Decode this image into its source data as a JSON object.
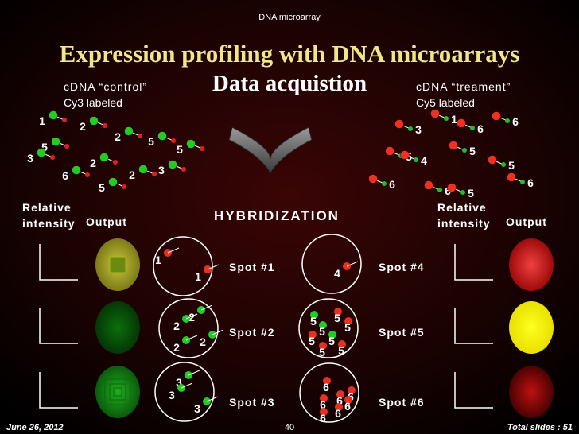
{
  "header": "DNA microarray",
  "title": "Expression profiling with DNA microarrays",
  "subtitle": "Data acquistion",
  "control": {
    "name": "cDNA “control”",
    "label": "Cy3 labeled",
    "spots": [
      1,
      2,
      2,
      5,
      5,
      5,
      3,
      2,
      3,
      6,
      2,
      5
    ]
  },
  "treatment": {
    "name": "cDNA “treament”",
    "label": "Cy5 labeled",
    "spots": [
      1,
      6,
      6,
      3,
      5,
      5,
      4,
      5,
      6,
      6,
      6,
      5
    ]
  },
  "left_panel": {
    "intensity": [
      "Relative",
      "intensity"
    ],
    "output": "Output"
  },
  "right_panel": {
    "intensity": [
      "Relative",
      "intensity"
    ],
    "output": "Output"
  },
  "hybridization": "HYBRIDIZATION",
  "spots": [
    {
      "label": "Spot #1",
      "numbers": [
        1,
        1
      ]
    },
    {
      "label": "Spot #2",
      "numbers": [
        2,
        2,
        2,
        2
      ]
    },
    {
      "label": "Spot #3",
      "numbers": [
        3,
        3,
        3
      ]
    },
    {
      "label": "Spot #4",
      "numbers": [
        4
      ]
    },
    {
      "label": "Spot #5",
      "numbers": [
        5,
        5,
        5,
        5,
        5,
        5,
        5,
        5
      ]
    },
    {
      "label": "Spot #6",
      "numbers": [
        6,
        6,
        6,
        6,
        6,
        6,
        6
      ]
    }
  ],
  "footer": {
    "date": "June 26, 2012",
    "page": 40,
    "total": "Total slides : 51"
  }
}
